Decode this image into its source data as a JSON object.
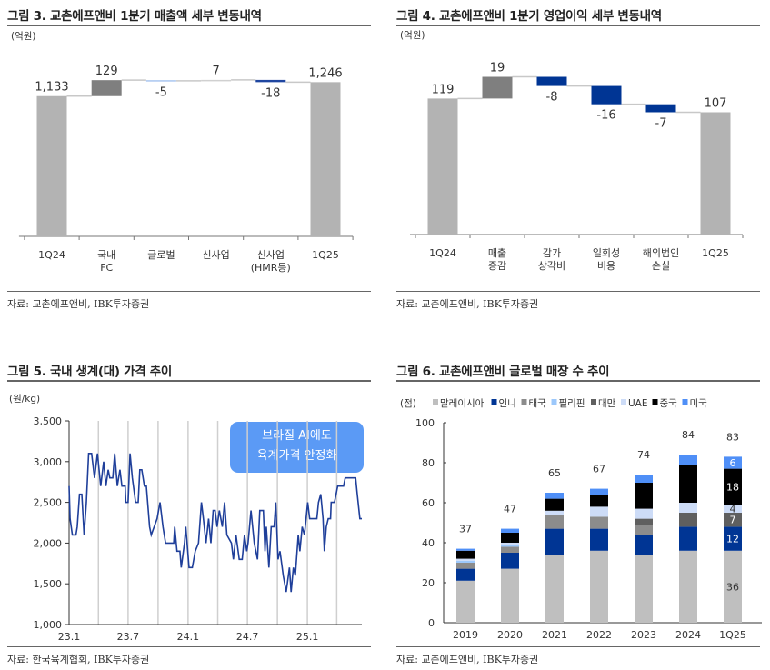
{
  "chart_data": [
    {
      "id": "fig3",
      "type": "waterfall",
      "title": "그림 3. 교촌에프앤비 1분기 매출액 세부 변동내역",
      "unit": "(억원)",
      "categories": [
        "1Q24",
        "국내\nFC",
        "글로벌",
        "신사업",
        "신사업\n(HMR등)",
        "1Q25"
      ],
      "values": [
        1133,
        129,
        -5,
        7,
        -18,
        1246
      ],
      "labels": [
        "1,133",
        "129",
        "-5",
        "7",
        "-18",
        "1,246"
      ],
      "kinds": [
        "total",
        "delta",
        "delta",
        "delta",
        "delta",
        "total"
      ],
      "colors": [
        "#b3b3b3",
        "#7f7f7f",
        "#a9c6f0",
        "#d0d0d0",
        "#1f46a0",
        "#b3b3b3"
      ],
      "ylim": [
        0,
        1300
      ],
      "source": "자료: 교촌에프앤비, IBK투자증권"
    },
    {
      "id": "fig4",
      "type": "waterfall",
      "title": "그림 4. 교촌에프앤비 1분기 영업이익 세부 변동내역",
      "unit": "(억원)",
      "categories": [
        "1Q24",
        "매출\n증감",
        "감가\n상각비",
        "일회성\n비용",
        "해외법인\n손실",
        "1Q25"
      ],
      "values": [
        119,
        19,
        -8,
        -16,
        -7,
        107
      ],
      "labels": [
        "119",
        "19",
        "-8",
        "-16",
        "-7",
        "107"
      ],
      "kinds": [
        "total",
        "delta",
        "delta",
        "delta",
        "delta",
        "total"
      ],
      "colors": [
        "#b3b3b3",
        "#7f7f7f",
        "#003594",
        "#003594",
        "#003594",
        "#b3b3b3"
      ],
      "ylim": [
        0,
        140
      ],
      "source": "자료: 교촌에프앤비, IBK투자증권"
    },
    {
      "id": "fig5",
      "type": "line",
      "title": "그림 5. 국내 생계(대) 가격 추이",
      "unit": "(원/kg)",
      "ylim": [
        1000,
        3500
      ],
      "yticks": [
        "1,000",
        "1,500",
        "2,000",
        "2,500",
        "3,000",
        "3,500"
      ],
      "xlim": [
        "2023-01-01",
        "2025-06-17"
      ],
      "xticks": [
        {
          "date": "2023-01-01",
          "label": "23.1"
        },
        {
          "date": "2023-07-01",
          "label": "23.7"
        },
        {
          "date": "2024-01-01",
          "label": "24.1"
        },
        {
          "date": "2024-07-01",
          "label": "24.7"
        },
        {
          "date": "2025-01-01",
          "label": "25.1"
        }
      ],
      "grid": "vertical quarterly",
      "color": "#1f3f9a",
      "annotation": [
        "브라질 AI에도",
        "육계가격 안정화"
      ],
      "annotation_color": "#5b9af5",
      "x": [
        "2023-01-01",
        "2023-01-04",
        "2023-01-11",
        "2023-01-22",
        "2023-01-26",
        "2023-02-02",
        "2023-02-09",
        "2023-02-16",
        "2023-02-23",
        "2023-03-02",
        "2023-03-11",
        "2023-03-20",
        "2023-03-29",
        "2023-04-08",
        "2023-04-17",
        "2023-04-24",
        "2023-05-01",
        "2023-05-06",
        "2023-05-15",
        "2023-05-21",
        "2023-05-29",
        "2023-06-06",
        "2023-06-12",
        "2023-06-22",
        "2023-06-24",
        "2023-07-01",
        "2023-07-07",
        "2023-07-14",
        "2023-07-24",
        "2023-08-01",
        "2023-08-06",
        "2023-08-12",
        "2023-08-20",
        "2023-08-26",
        "2023-09-05",
        "2023-09-10",
        "2023-09-19",
        "2023-09-28",
        "2023-10-07",
        "2023-10-16",
        "2023-10-24",
        "2023-11-18",
        "2023-11-21",
        "2023-11-28",
        "2023-12-07",
        "2023-12-11",
        "2023-12-21",
        "2023-12-25",
        "2024-01-04",
        "2024-01-14",
        "2024-01-23",
        "2024-02-02",
        "2024-02-11",
        "2024-02-17",
        "2024-02-25",
        "2024-03-04",
        "2024-03-11",
        "2024-03-18",
        "2024-03-24",
        "2024-03-30",
        "2024-04-06",
        "2024-04-15",
        "2024-04-22",
        "2024-04-29",
        "2024-05-13",
        "2024-05-19",
        "2024-05-27",
        "2024-06-06",
        "2024-06-15",
        "2024-06-22",
        "2024-06-29",
        "2024-07-03",
        "2024-07-12",
        "2024-07-22",
        "2024-08-01",
        "2024-08-08",
        "2024-08-19",
        "2024-08-24",
        "2024-08-28",
        "2024-09-05",
        "2024-09-12",
        "2024-09-21",
        "2024-09-26",
        "2024-10-03",
        "2024-10-09",
        "2024-10-19",
        "2024-10-28",
        "2024-11-07",
        "2024-11-12",
        "2024-11-19",
        "2024-11-25",
        "2024-12-04",
        "2024-12-09",
        "2024-12-16",
        "2024-12-23",
        "2025-01-02",
        "2025-01-08",
        "2025-01-30",
        "2025-02-04",
        "2025-02-11",
        "2025-02-18",
        "2025-02-22",
        "2025-02-28",
        "2025-03-06",
        "2025-03-13",
        "2025-03-15",
        "2025-03-25",
        "2025-04-04",
        "2025-04-22",
        "2025-04-27",
        "2025-05-29",
        "2025-06-03",
        "2025-06-11",
        "2025-06-17"
      ],
      "y": [
        2700,
        2300,
        2100,
        2100,
        2200,
        2600,
        2600,
        2100,
        2500,
        3100,
        3100,
        2800,
        3100,
        2700,
        3000,
        2700,
        2900,
        2800,
        2800,
        3100,
        2700,
        2900,
        2700,
        2700,
        2500,
        2500,
        3100,
        2800,
        2500,
        2500,
        2900,
        2900,
        2700,
        2700,
        2200,
        2100,
        2200,
        2300,
        2500,
        2200,
        2000,
        2000,
        2200,
        1900,
        1900,
        1700,
        2000,
        2200,
        1700,
        1700,
        1900,
        2000,
        2500,
        2300,
        2000,
        2300,
        2000,
        2400,
        2400,
        2200,
        2400,
        2200,
        2500,
        2100,
        2000,
        1800,
        2100,
        1800,
        1800,
        2100,
        1900,
        2000,
        2400,
        2000,
        1800,
        2400,
        2400,
        1900,
        2200,
        1700,
        2200,
        2200,
        2500,
        1800,
        1900,
        1600,
        1400,
        1700,
        1400,
        1700,
        1600,
        2100,
        1900,
        2200,
        2100,
        2500,
        2300,
        2300,
        2500,
        2600,
        2300,
        1900,
        2200,
        2300,
        2300,
        2500,
        2500,
        2700,
        2700,
        2800,
        2800,
        2600,
        2300,
        2300
      ],
      "source": "자료: 한국육계협회, IBK투자증권"
    },
    {
      "id": "fig6",
      "type": "bar",
      "stacked": true,
      "title": "그림 6. 교촌에프앤비 글로벌 매장 수 추이",
      "unit": "(점)",
      "categories": [
        "2019",
        "2020",
        "2021",
        "2022",
        "2023",
        "2024",
        "1Q25"
      ],
      "ylim": [
        0,
        100
      ],
      "yticks": [
        "0",
        "20",
        "40",
        "60",
        "80",
        "100"
      ],
      "legend": "top",
      "series": [
        {
          "name": "말레이시아",
          "color": "#bfbfbf",
          "values": [
            21,
            27,
            34,
            36,
            34,
            36,
            36
          ]
        },
        {
          "name": "인니",
          "color": "#003594",
          "values": [
            6,
            8,
            13,
            11,
            10,
            12,
            12
          ]
        },
        {
          "name": "태국",
          "color": "#8c8c8c",
          "values": [
            3,
            3,
            7,
            6,
            5,
            0,
            0
          ]
        },
        {
          "name": "필리핀",
          "color": "#9cc8fb",
          "values": [
            1,
            1,
            0,
            0,
            0,
            0,
            0
          ]
        },
        {
          "name": "대만",
          "color": "#5f5f5f",
          "values": [
            0,
            0,
            0,
            0,
            3,
            7,
            7
          ]
        },
        {
          "name": "UAE",
          "color": "#cddcf7",
          "values": [
            1,
            1,
            2,
            5,
            5,
            5,
            4
          ]
        },
        {
          "name": "중국",
          "color": "#000000",
          "values": [
            4,
            5,
            6,
            6,
            13,
            19,
            18
          ]
        },
        {
          "name": "미국",
          "color": "#4f8ff7",
          "values": [
            1,
            2,
            3,
            3,
            4,
            5,
            6
          ]
        }
      ],
      "totals": [
        37,
        47,
        65,
        67,
        74,
        84,
        83
      ],
      "segment_labels_1Q25": [
        "36",
        "12",
        "",
        "",
        "7",
        "4",
        "18",
        "6"
      ],
      "source": "자료: 교촌에프앤비, IBK투자증권"
    }
  ]
}
